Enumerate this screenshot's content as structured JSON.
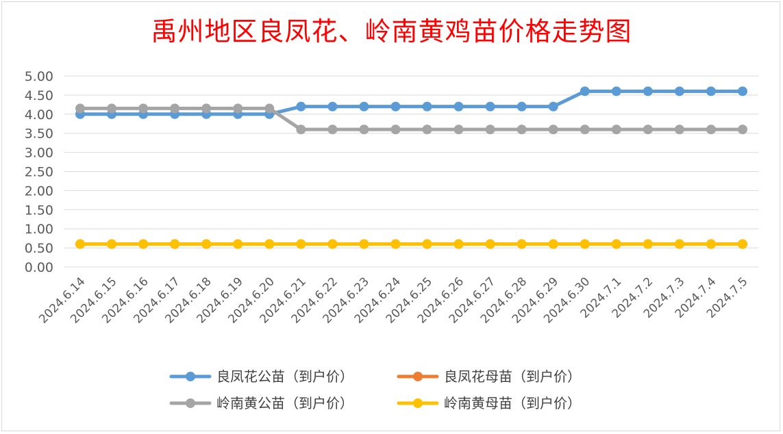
{
  "chart_data": {
    "type": "line",
    "title": "禹州地区良凤花、岭南黄鸡苗价格走势图",
    "categories": [
      "2024.6.14",
      "2024.6.15",
      "2024.6.16",
      "2024.6.17",
      "2024.6.18",
      "2024.6.19",
      "2024.6.20",
      "2024.6.21",
      "2024.6.22",
      "2024.6.23",
      "2024.6.24",
      "2024.6.25",
      "2024.6.26",
      "2024.6.27",
      "2024.6.28",
      "2024.6.29",
      "2024.6.30",
      "2024.7.1",
      "2024.7.2",
      "2024.7.3",
      "2024.7.4",
      "2024.7.5"
    ],
    "ylim": [
      0,
      5
    ],
    "yticks": [
      "0.00",
      "0.50",
      "1.00",
      "1.50",
      "2.00",
      "2.50",
      "3.00",
      "3.50",
      "4.00",
      "4.50",
      "5.00"
    ],
    "grid": true,
    "legend_position": "bottom",
    "series": [
      {
        "name": "良凤花公苗（到户价）",
        "color": "#5b9bd5",
        "values": [
          4.0,
          4.0,
          4.0,
          4.0,
          4.0,
          4.0,
          4.0,
          4.2,
          4.2,
          4.2,
          4.2,
          4.2,
          4.2,
          4.2,
          4.2,
          4.2,
          4.6,
          4.6,
          4.6,
          4.6,
          4.6,
          4.6
        ]
      },
      {
        "name": "良凤花母苗（到户价）",
        "color": "#ed7d31",
        "values": [
          0.6,
          0.6,
          0.6,
          0.6,
          0.6,
          0.6,
          0.6,
          0.6,
          0.6,
          0.6,
          0.6,
          0.6,
          0.6,
          0.6,
          0.6,
          0.6,
          0.6,
          0.6,
          0.6,
          0.6,
          0.6,
          0.6
        ]
      },
      {
        "name": "岭南黄公苗（到户价）",
        "color": "#a5a5a5",
        "values": [
          4.15,
          4.15,
          4.15,
          4.15,
          4.15,
          4.15,
          4.15,
          3.6,
          3.6,
          3.6,
          3.6,
          3.6,
          3.6,
          3.6,
          3.6,
          3.6,
          3.6,
          3.6,
          3.6,
          3.6,
          3.6,
          3.6
        ]
      },
      {
        "name": "岭南黄母苗（到户价）",
        "color": "#ffc000",
        "values": [
          0.6,
          0.6,
          0.6,
          0.6,
          0.6,
          0.6,
          0.6,
          0.6,
          0.6,
          0.6,
          0.6,
          0.6,
          0.6,
          0.6,
          0.6,
          0.6,
          0.6,
          0.6,
          0.6,
          0.6,
          0.6,
          0.6
        ]
      }
    ]
  }
}
